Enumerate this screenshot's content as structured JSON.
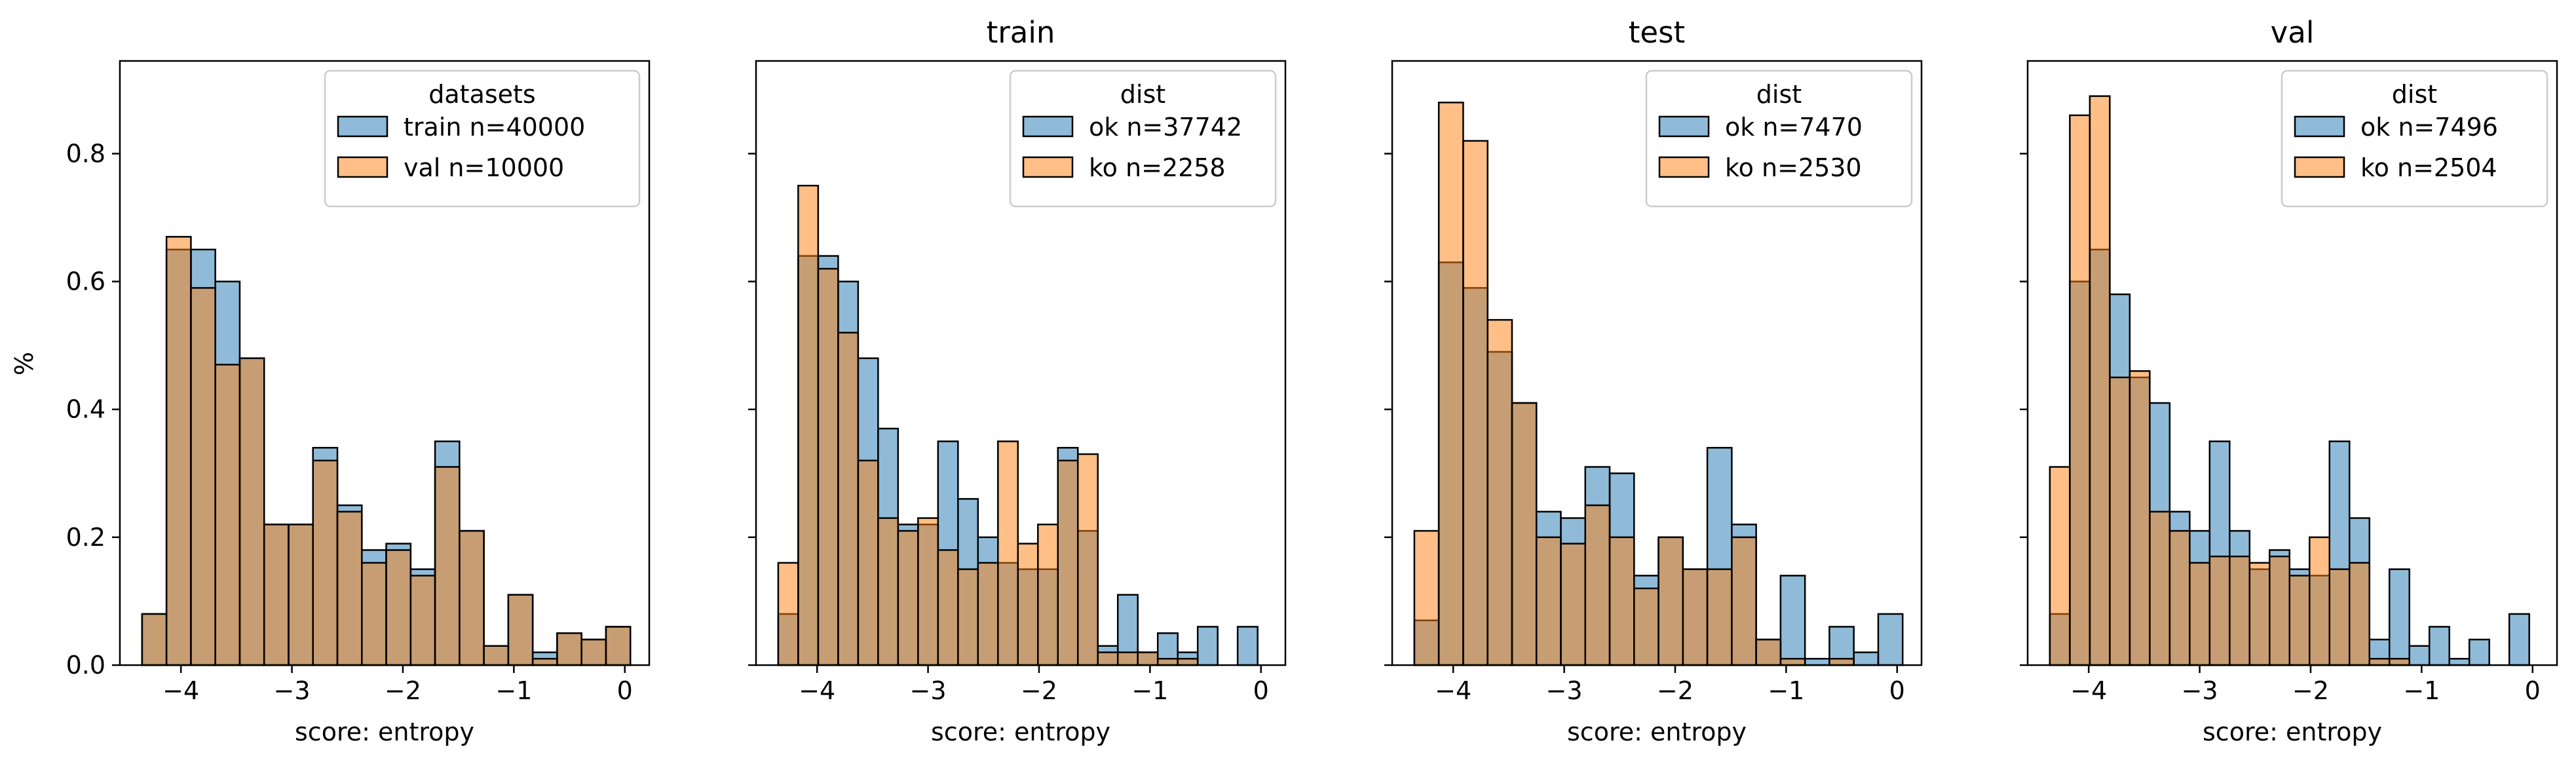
{
  "figure": {
    "ylabel": "%",
    "xlabel": "score: entropy"
  },
  "colors": {
    "blue": "#1f77b4",
    "orange": "#ff7f0e",
    "edge": "#000000"
  },
  "chart_data": [
    {
      "type": "bar",
      "title": "",
      "xlabel": "score: entropy",
      "ylabel": "%",
      "xlim": [
        -4.55,
        0.22
      ],
      "ylim": [
        0,
        0.945
      ],
      "xticks": [
        -4,
        -3,
        -2,
        -1,
        0
      ],
      "xtick_labels": [
        "−4",
        "−3",
        "−2",
        "−1",
        "0"
      ],
      "yticks": [
        0.0,
        0.2,
        0.4,
        0.6,
        0.8
      ],
      "ytick_labels": [
        "0.0",
        "0.2",
        "0.4",
        "0.6",
        "0.8"
      ],
      "bin_edges": [
        -4.35,
        -4.13,
        -3.91,
        -3.69,
        -3.47,
        -3.25,
        -3.03,
        -2.81,
        -2.59,
        -2.37,
        -2.15,
        -1.93,
        -1.71,
        -1.49,
        -1.27,
        -1.05,
        -0.83,
        -0.61,
        -0.39,
        -0.17,
        0.05
      ],
      "legend": {
        "title": "datasets",
        "position": "upper right"
      },
      "series": [
        {
          "name": "train n=40000",
          "color": "blue",
          "values": [
            0.08,
            0.65,
            0.65,
            0.6,
            0.48,
            0.22,
            0.22,
            0.34,
            0.25,
            0.18,
            0.19,
            0.15,
            0.35,
            0.21,
            0.03,
            0.11,
            0.02,
            0.05,
            0.04,
            0.06
          ]
        },
        {
          "name": "val n=10000",
          "color": "orange",
          "values": [
            0.08,
            0.67,
            0.59,
            0.47,
            0.48,
            0.22,
            0.22,
            0.32,
            0.24,
            0.16,
            0.18,
            0.14,
            0.31,
            0.21,
            0.03,
            0.11,
            0.01,
            0.05,
            0.04,
            0.06
          ]
        }
      ]
    },
    {
      "type": "bar",
      "title": "train",
      "xlabel": "score: entropy",
      "xlim": [
        -4.55,
        0.22
      ],
      "ylim": [
        0,
        0.945
      ],
      "xticks": [
        -4,
        -3,
        -2,
        -1,
        0
      ],
      "xtick_labels": [
        "−4",
        "−3",
        "−2",
        "−1",
        "0"
      ],
      "bin_edges": [
        -4.35,
        -4.17,
        -3.99,
        -3.81,
        -3.63,
        -3.45,
        -3.27,
        -3.09,
        -2.91,
        -2.73,
        -2.55,
        -2.37,
        -2.19,
        -2.01,
        -1.83,
        -1.65,
        -1.47,
        -1.29,
        -1.11,
        -0.93,
        -0.75,
        -0.57,
        -0.39,
        -0.21,
        -0.03,
        0.05
      ],
      "legend": {
        "title": "dist",
        "position": "upper right"
      },
      "series": [
        {
          "name": "ok n=37742",
          "color": "blue",
          "values": [
            0.08,
            0.64,
            0.64,
            0.6,
            0.48,
            0.37,
            0.22,
            0.22,
            0.35,
            0.26,
            0.2,
            0.16,
            0.15,
            0.15,
            0.34,
            0.21,
            0.03,
            0.11,
            0.02,
            0.05,
            0.02,
            0.06,
            0.0,
            0.06,
            0.0
          ]
        },
        {
          "name": "ko n=2258",
          "color": "orange",
          "values": [
            0.16,
            0.75,
            0.62,
            0.52,
            0.32,
            0.23,
            0.21,
            0.23,
            0.18,
            0.15,
            0.16,
            0.35,
            0.19,
            0.22,
            0.32,
            0.33,
            0.02,
            0.02,
            0.02,
            0.01,
            0.01,
            0.0,
            0.0,
            0.0,
            0.0
          ]
        }
      ]
    },
    {
      "type": "bar",
      "title": "test",
      "xlabel": "score: entropy",
      "xlim": [
        -4.55,
        0.22
      ],
      "ylim": [
        0,
        0.945
      ],
      "xticks": [
        -4,
        -3,
        -2,
        -1,
        0
      ],
      "xtick_labels": [
        "−4",
        "−3",
        "−2",
        "−1",
        "0"
      ],
      "bin_edges": [
        -4.35,
        -4.13,
        -3.91,
        -3.69,
        -3.47,
        -3.25,
        -3.03,
        -2.81,
        -2.59,
        -2.37,
        -2.15,
        -1.93,
        -1.71,
        -1.49,
        -1.27,
        -1.05,
        -0.83,
        -0.61,
        -0.39,
        -0.17,
        0.05
      ],
      "legend": {
        "title": "dist",
        "position": "upper right"
      },
      "series": [
        {
          "name": "ok n=7470",
          "color": "blue",
          "values": [
            0.07,
            0.63,
            0.59,
            0.49,
            0.41,
            0.24,
            0.23,
            0.31,
            0.3,
            0.14,
            0.2,
            0.15,
            0.34,
            0.22,
            0.04,
            0.14,
            0.01,
            0.06,
            0.02,
            0.08
          ]
        },
        {
          "name": "ko n=2530",
          "color": "orange",
          "values": [
            0.21,
            0.88,
            0.82,
            0.54,
            0.41,
            0.2,
            0.19,
            0.25,
            0.2,
            0.12,
            0.2,
            0.15,
            0.15,
            0.2,
            0.04,
            0.01,
            0.0,
            0.01,
            0.0,
            0.0
          ]
        }
      ]
    },
    {
      "type": "bar",
      "title": "val",
      "xlabel": "score: entropy",
      "xlim": [
        -4.55,
        0.22
      ],
      "ylim": [
        0,
        0.945
      ],
      "xticks": [
        -4,
        -3,
        -2,
        -1,
        0
      ],
      "xtick_labels": [
        "−4",
        "−3",
        "−2",
        "−1",
        "0"
      ],
      "bin_edges": [
        -4.35,
        -4.17,
        -3.99,
        -3.81,
        -3.63,
        -3.45,
        -3.27,
        -3.09,
        -2.91,
        -2.73,
        -2.55,
        -2.37,
        -2.19,
        -2.01,
        -1.83,
        -1.65,
        -1.47,
        -1.29,
        -1.11,
        -0.93,
        -0.75,
        -0.57,
        -0.39,
        -0.21,
        -0.03,
        0.05
      ],
      "legend": {
        "title": "dist",
        "position": "upper right"
      },
      "series": [
        {
          "name": "ok n=7496",
          "color": "blue",
          "values": [
            0.08,
            0.6,
            0.65,
            0.58,
            0.45,
            0.41,
            0.24,
            0.21,
            0.35,
            0.21,
            0.15,
            0.18,
            0.15,
            0.14,
            0.35,
            0.23,
            0.04,
            0.15,
            0.03,
            0.06,
            0.01,
            0.04,
            0.0,
            0.08,
            0.0
          ]
        },
        {
          "name": "ko n=2504",
          "color": "orange",
          "values": [
            0.31,
            0.86,
            0.89,
            0.45,
            0.46,
            0.24,
            0.21,
            0.16,
            0.17,
            0.17,
            0.16,
            0.17,
            0.14,
            0.2,
            0.15,
            0.16,
            0.01,
            0.01,
            0.0,
            0.0,
            0.0,
            0.0,
            0.0,
            0.0,
            0.0
          ]
        }
      ]
    }
  ]
}
